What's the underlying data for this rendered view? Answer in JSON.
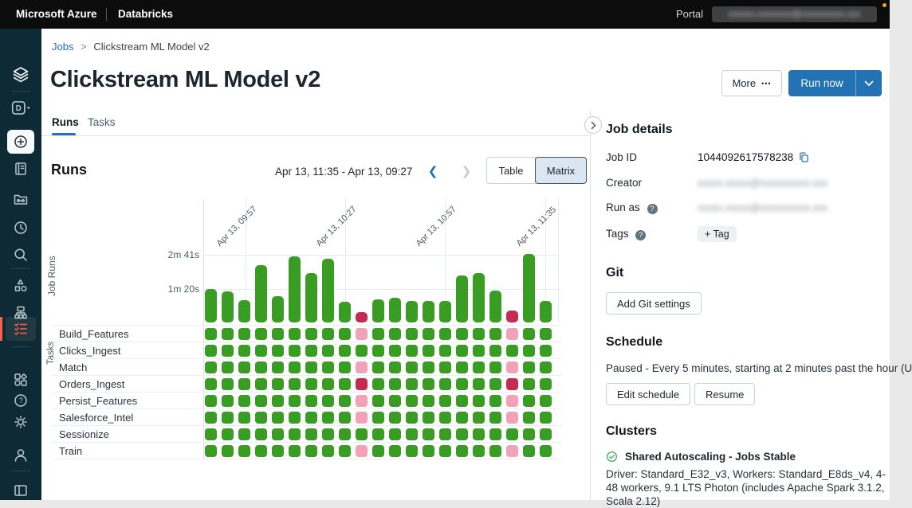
{
  "colors": {
    "success": "#3A9D23",
    "failed": "#C52B51",
    "skipped": "#F2A2B8",
    "accent_blue": "#2272B4",
    "active_red": "#FF5F46",
    "notification_orange": "#F7A32B",
    "check_green": "#3CA861"
  },
  "topbar": {
    "brand_left": "Microsoft Azure",
    "brand_right": "Databricks",
    "portal_label": "Portal",
    "account_redacted": "xxxxxx.xxxxxxxx@xxxxxxxxxx.xxx"
  },
  "sidebar": {
    "items": [
      "databricks-logo",
      "workspace-switcher",
      "create",
      "workspace",
      "repos",
      "recents",
      "search",
      "data",
      "compute",
      "workflows",
      "partner-connect",
      "help",
      "settings",
      "account",
      "collapse-sidebar"
    ],
    "active_item": "workflows"
  },
  "breadcrumb": {
    "parent": "Jobs",
    "separator": ">",
    "current": "Clickstream ML Model v2"
  },
  "header": {
    "title": "Clickstream ML Model v2",
    "more_label": "More",
    "more_ellipsis": "•••",
    "run_now_label": "Run now"
  },
  "tabs": [
    {
      "label": "Runs",
      "active": true
    },
    {
      "label": "Tasks",
      "active": false
    }
  ],
  "runs_section": {
    "heading": "Runs",
    "date_range": "Apr 13, 11:35 - Apr 13, 09:27",
    "prev": "❮",
    "next": "❯",
    "view_options": [
      "Table",
      "Matrix"
    ],
    "selected_view": "Matrix"
  },
  "chart_data": {
    "type": "bar",
    "title": "Runs matrix",
    "ylabel": "Job Runs",
    "ytick_labels": [
      "2m 41s",
      "1m 20s"
    ],
    "ytick_seconds": [
      161,
      80
    ],
    "xtick_labels": [
      "Apr 13, 09:57",
      "Apr 13, 10:27",
      "Apr 13, 10:57",
      "Apr 13, 11:35"
    ],
    "bar_unit": "seconds",
    "bars": [
      {
        "seconds": 80,
        "status": "success"
      },
      {
        "seconds": 74,
        "status": "success"
      },
      {
        "seconds": 54,
        "status": "success"
      },
      {
        "seconds": 137,
        "status": "success"
      },
      {
        "seconds": 63,
        "status": "success"
      },
      {
        "seconds": 159,
        "status": "success"
      },
      {
        "seconds": 119,
        "status": "success"
      },
      {
        "seconds": 152,
        "status": "success"
      },
      {
        "seconds": 50,
        "status": "success"
      },
      {
        "seconds": 25,
        "status": "failed"
      },
      {
        "seconds": 55,
        "status": "success"
      },
      {
        "seconds": 59,
        "status": "success"
      },
      {
        "seconds": 51,
        "status": "success"
      },
      {
        "seconds": 51,
        "status": "success"
      },
      {
        "seconds": 52,
        "status": "success"
      },
      {
        "seconds": 112,
        "status": "success"
      },
      {
        "seconds": 118,
        "status": "success"
      },
      {
        "seconds": 76,
        "status": "success"
      },
      {
        "seconds": 29,
        "status": "failed"
      },
      {
        "seconds": 164,
        "status": "success"
      },
      {
        "seconds": 52,
        "status": "success"
      }
    ],
    "tasks_matrix": {
      "ylabel": "Tasks",
      "rows": [
        {
          "name": "Build_Features",
          "cells": [
            "success",
            "success",
            "success",
            "success",
            "success",
            "success",
            "success",
            "success",
            "success",
            "skipped",
            "success",
            "success",
            "success",
            "success",
            "success",
            "success",
            "success",
            "success",
            "skipped",
            "success",
            "success"
          ]
        },
        {
          "name": "Clicks_Ingest",
          "cells": [
            "success",
            "success",
            "success",
            "success",
            "success",
            "success",
            "success",
            "success",
            "success",
            "success",
            "success",
            "success",
            "success",
            "success",
            "success",
            "success",
            "success",
            "success",
            "success",
            "success",
            "success"
          ]
        },
        {
          "name": "Match",
          "cells": [
            "success",
            "success",
            "success",
            "success",
            "success",
            "success",
            "success",
            "success",
            "success",
            "skipped",
            "success",
            "success",
            "success",
            "success",
            "success",
            "success",
            "success",
            "success",
            "skipped",
            "success",
            "success"
          ]
        },
        {
          "name": "Orders_Ingest",
          "cells": [
            "success",
            "success",
            "success",
            "success",
            "success",
            "success",
            "success",
            "success",
            "success",
            "failed",
            "success",
            "success",
            "success",
            "success",
            "success",
            "success",
            "success",
            "success",
            "failed",
            "success",
            "success"
          ]
        },
        {
          "name": "Persist_Features",
          "cells": [
            "success",
            "success",
            "success",
            "success",
            "success",
            "success",
            "success",
            "success",
            "success",
            "skipped",
            "success",
            "success",
            "success",
            "success",
            "success",
            "success",
            "success",
            "success",
            "skipped",
            "success",
            "success"
          ]
        },
        {
          "name": "Salesforce_Intel",
          "cells": [
            "success",
            "success",
            "success",
            "success",
            "success",
            "success",
            "success",
            "success",
            "success",
            "skipped",
            "success",
            "success",
            "success",
            "success",
            "success",
            "success",
            "success",
            "success",
            "skipped",
            "success",
            "success"
          ]
        },
        {
          "name": "Sessionize",
          "cells": [
            "success",
            "success",
            "success",
            "success",
            "success",
            "success",
            "success",
            "success",
            "success",
            "success",
            "success",
            "success",
            "success",
            "success",
            "success",
            "success",
            "success",
            "success",
            "success",
            "success",
            "success"
          ]
        },
        {
          "name": "Train",
          "cells": [
            "success",
            "success",
            "success",
            "success",
            "success",
            "success",
            "success",
            "success",
            "success",
            "skipped",
            "success",
            "success",
            "success",
            "success",
            "success",
            "success",
            "success",
            "success",
            "skipped",
            "success",
            "success"
          ]
        }
      ]
    }
  },
  "job_details": {
    "heading": "Job details",
    "job_id_label": "Job ID",
    "job_id_value": "1044092617578238",
    "creator_label": "Creator",
    "creator_redacted": "xxxxx.xxxxx@xxxxxxxxxx.xxx",
    "run_as_label": "Run as",
    "run_as_redacted": "xxxxx.xxxxx@xxxxxxxxxx.xxx",
    "tags_label": "Tags",
    "tag_chip": "+ Tag"
  },
  "git": {
    "heading": "Git",
    "button": "Add Git settings"
  },
  "schedule": {
    "heading": "Schedule",
    "status_text": "Paused - Every 5 minutes, starting at 2 minutes past the hour (U",
    "edit_button": "Edit schedule",
    "resume_button": "Resume"
  },
  "clusters": {
    "heading": "Clusters",
    "cluster_name": "Shared Autoscaling - Jobs Stable",
    "cluster_desc": "Driver: Standard_E32_v3, Workers: Standard_E8ds_v4, 4-48 workers, 9.1 LTS Photon (includes Apache Spark 3.1.2, Scala 2.12)"
  }
}
